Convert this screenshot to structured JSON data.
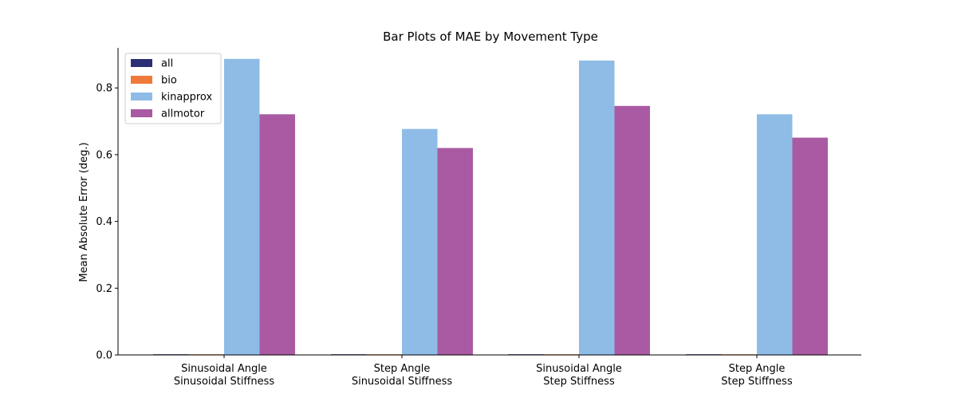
{
  "chart_data": {
    "type": "bar",
    "title": "Bar Plots of MAE by Movement Type",
    "xlabel": "",
    "ylabel": "Mean Absolute Error (deg.)",
    "ylim": [
      0,
      0.92
    ],
    "yticks": [
      "0.0",
      "0.2",
      "0.4",
      "0.6",
      "0.8"
    ],
    "ytick_values": [
      0,
      0.2,
      0.4,
      0.6,
      0.8
    ],
    "categories": [
      [
        "Sinusoidal Angle",
        "Sinusoidal Stiffness"
      ],
      [
        "Step Angle",
        "Sinusoidal Stiffness"
      ],
      [
        "Sinusoidal Angle",
        "Step Stiffness"
      ],
      [
        "Step Angle",
        "Step Stiffness"
      ]
    ],
    "series": [
      {
        "name": "all",
        "color": "#2b2f73",
        "values": [
          0.002,
          0.002,
          0.002,
          0.002
        ]
      },
      {
        "name": "bio",
        "color": "#f07a3a",
        "values": [
          0.002,
          0.002,
          0.002,
          0.002
        ]
      },
      {
        "name": "kinapprox",
        "color": "#8ebce6",
        "values": [
          0.887,
          0.677,
          0.882,
          0.721
        ]
      },
      {
        "name": "allmotor",
        "color": "#a95aa2",
        "values": [
          0.721,
          0.62,
          0.746,
          0.651
        ]
      }
    ],
    "legend_position": "top-left",
    "grid": false
  }
}
